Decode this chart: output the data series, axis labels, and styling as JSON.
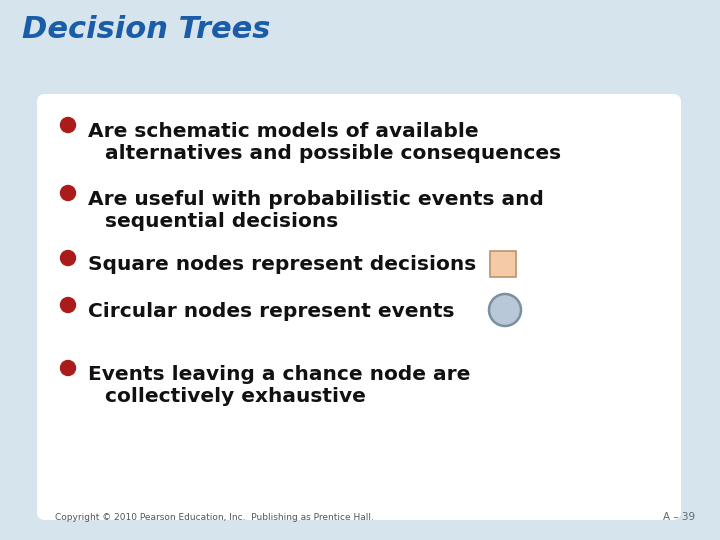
{
  "title": "Decision Trees",
  "title_color": "#1A5CA8",
  "title_fontsize": 22,
  "title_style": "italic",
  "title_weight": "bold",
  "bg_outer": "#D6E4EE",
  "bg_inner": "#FFFFFF",
  "bullet_color": "#AA1C1C",
  "text_color": "#111111",
  "bullet_fontsize": 14.5,
  "bullets": [
    [
      "Are schematic models of available",
      "alternatives and possible consequences"
    ],
    [
      "Are useful with probabilistic events and",
      "sequential decisions"
    ],
    [
      "Square nodes represent decisions",
      ""
    ],
    [
      "Circular nodes represent events",
      ""
    ],
    [
      "Events leaving a chance node are",
      "collectively exhaustive"
    ]
  ],
  "square_node_color": "#F5CBA7",
  "square_node_edge": "#B8956A",
  "circle_node_color": "#B8C8D8",
  "circle_node_edge": "#7A8FA0",
  "copyright_text": "Copyright © 2010 Pearson Education, Inc.  Publishing as Prentice Hall.",
  "page_label": "A – 39"
}
